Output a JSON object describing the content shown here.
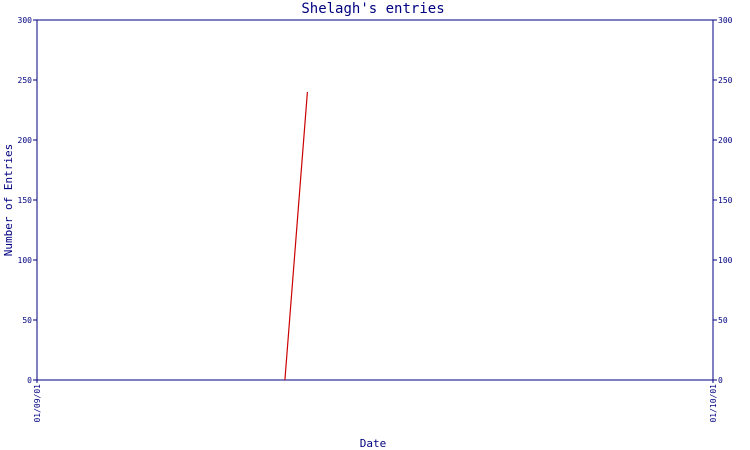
{
  "chart_data": {
    "type": "line",
    "title": "Shelagh's entries",
    "xlabel": "Date",
    "ylabel": "Number of Entries",
    "ylim": [
      0,
      300
    ],
    "yticks": [
      0,
      50,
      100,
      150,
      200,
      250,
      300
    ],
    "xlim": [
      "01/09/01",
      "01/10/01"
    ],
    "xticks": [
      "01/09/01",
      "01/10/01"
    ],
    "grid": false,
    "series": [
      {
        "color": "#cc0000",
        "x": [
          "2001-09-12",
          "2001-09-13"
        ],
        "y": [
          0,
          240
        ]
      }
    ]
  }
}
